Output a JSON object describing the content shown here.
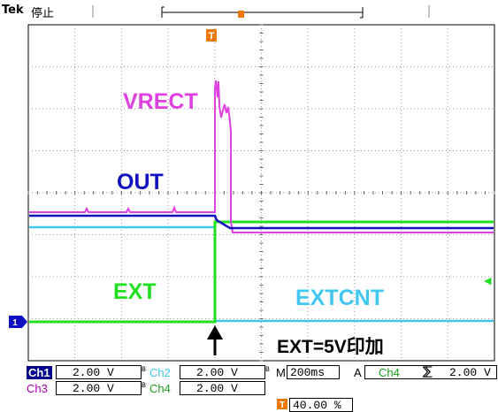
{
  "header": {
    "brand": "Tek",
    "state": "停止"
  },
  "markers": {
    "trigger_top": "T",
    "channel1": "1",
    "trigger_level_arrow": "◀",
    "trigger_pos": "T"
  },
  "labels": {
    "vrect": "VRECT",
    "out": "OUT",
    "ext": "EXT",
    "extcnt": "EXTCNT",
    "annotation": "EXT=5V印加"
  },
  "readout": {
    "ch1": "Ch1",
    "ch1_scale": "2.00 V",
    "ch1_bw": "B",
    "ch2": "Ch2",
    "ch2_scale": "2.00 V",
    "ch2_bw": "B",
    "ch3": "Ch3",
    "ch3_scale": "2.00 V",
    "ch3_bw": "B",
    "ch4": "Ch4",
    "ch4_scale": "2.00 V",
    "timebase_label": "M",
    "timebase": "200ms",
    "trigger_mode": "A",
    "trigger_src": "Ch4",
    "trigger_slope": "⅀",
    "trigger_level": "2.00 V",
    "position": "40.00 %"
  },
  "colors": {
    "vrect": "#e040e0",
    "out": "#1010c0",
    "ext": "#20e020",
    "extcnt": "#40c8f0",
    "ch1_bg": "#00008b",
    "ch3": "#b000b0",
    "ch4": "#1aa01a",
    "orange": "#f07800"
  }
}
